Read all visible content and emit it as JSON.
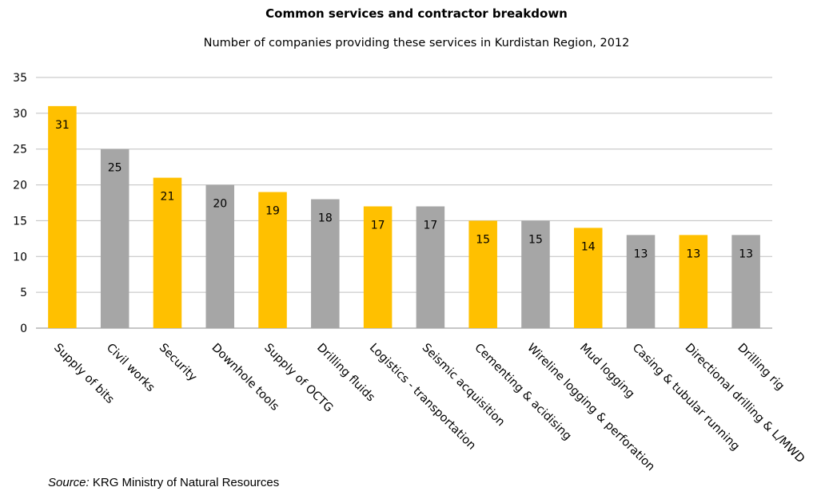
{
  "chart_data": {
    "type": "bar",
    "title": "Common services and contractor breakdown",
    "subtitle": "Number of companies providing these services in Kurdistan Region, 2012",
    "categories": [
      "Supply of bits",
      "Civil works",
      "Security",
      "Downhole tools",
      "Supply of OCTG",
      "Drilling fluids",
      "Logistics - transportation",
      "Seismic acquisition",
      "Cementing & acidising",
      "Wireline logging & perforation",
      "Mud logging",
      "Casing & tubular running",
      "Directional drilling & L/MWD",
      "Drilling rig"
    ],
    "values": [
      31,
      25,
      21,
      20,
      19,
      18,
      17,
      17,
      15,
      15,
      14,
      13,
      13,
      13
    ],
    "colors": [
      "#FFC000",
      "#A6A6A6",
      "#FFC000",
      "#A6A6A6",
      "#FFC000",
      "#A6A6A6",
      "#FFC000",
      "#A6A6A6",
      "#FFC000",
      "#A6A6A6",
      "#FFC000",
      "#A6A6A6",
      "#FFC000",
      "#A6A6A6"
    ],
    "ylim": [
      0,
      35
    ],
    "yticks": [
      0,
      5,
      10,
      15,
      20,
      25,
      30,
      35
    ],
    "grid": true,
    "data_labels": true
  },
  "source": {
    "label": "Source:",
    "text": " KRG Ministry of Natural Resources"
  }
}
